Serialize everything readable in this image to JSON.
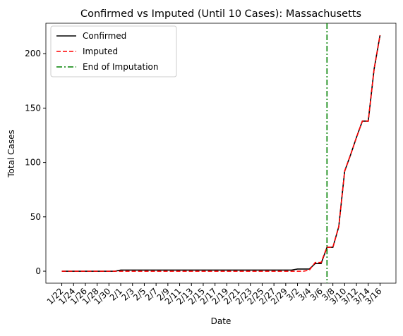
{
  "chart_data": {
    "type": "line",
    "title": "Confirmed vs Imputed (Until 10 Cases): Massachusetts",
    "x_label": "Date",
    "y_label": "Total Cases",
    "categories": [
      "1/22",
      null,
      "1/24",
      null,
      "1/26",
      null,
      "1/28",
      null,
      "1/30",
      null,
      "2/1",
      null,
      "2/3",
      null,
      "2/5",
      null,
      "2/7",
      null,
      "2/9",
      null,
      "2/11",
      null,
      "2/13",
      null,
      "2/15",
      null,
      "2/17",
      null,
      "2/19",
      null,
      "2/21",
      null,
      "2/23",
      null,
      "2/25",
      null,
      "2/27",
      null,
      "2/29",
      null,
      "3/2",
      null,
      "3/4",
      null,
      "3/6",
      null,
      "3/8",
      null,
      "3/10",
      null,
      "3/12",
      null,
      "3/14",
      null,
      "3/16"
    ],
    "series": [
      {
        "name": "Confirmed",
        "color": "#000000",
        "dash": "solid",
        "values": [
          0,
          0,
          0,
          0,
          0,
          0,
          0,
          0,
          0,
          0,
          1,
          1,
          1,
          1,
          1,
          1,
          1,
          1,
          1,
          1,
          1,
          1,
          1,
          1,
          1,
          1,
          1,
          1,
          1,
          1,
          1,
          1,
          1,
          1,
          1,
          1,
          1,
          1,
          1,
          1,
          2,
          2,
          2,
          7,
          7,
          22,
          22,
          41,
          92,
          107,
          123,
          138,
          138,
          186,
          217
        ]
      },
      {
        "name": "Imputed",
        "color": "#ff0000",
        "dash": "dashed",
        "values": [
          0,
          0,
          0,
          0,
          0,
          0,
          0,
          0,
          0,
          0,
          0,
          0,
          0,
          0,
          0,
          0,
          0,
          0,
          0,
          0,
          0,
          0,
          0,
          0,
          0,
          0,
          0,
          0,
          0,
          0,
          0,
          0,
          0,
          0,
          0,
          0,
          0,
          0,
          0,
          0,
          0,
          0,
          1,
          8,
          8,
          22,
          22,
          41,
          92,
          107,
          123,
          138,
          138,
          186,
          217
        ]
      }
    ],
    "vline": {
      "name": "End of Imputation",
      "color": "#008000",
      "x": 45
    },
    "xlim": [
      -2.7,
      56.7
    ],
    "ylim": [
      -11,
      228
    ],
    "yticks": [
      0,
      50,
      100,
      150,
      200
    ],
    "legend": "upper left"
  }
}
